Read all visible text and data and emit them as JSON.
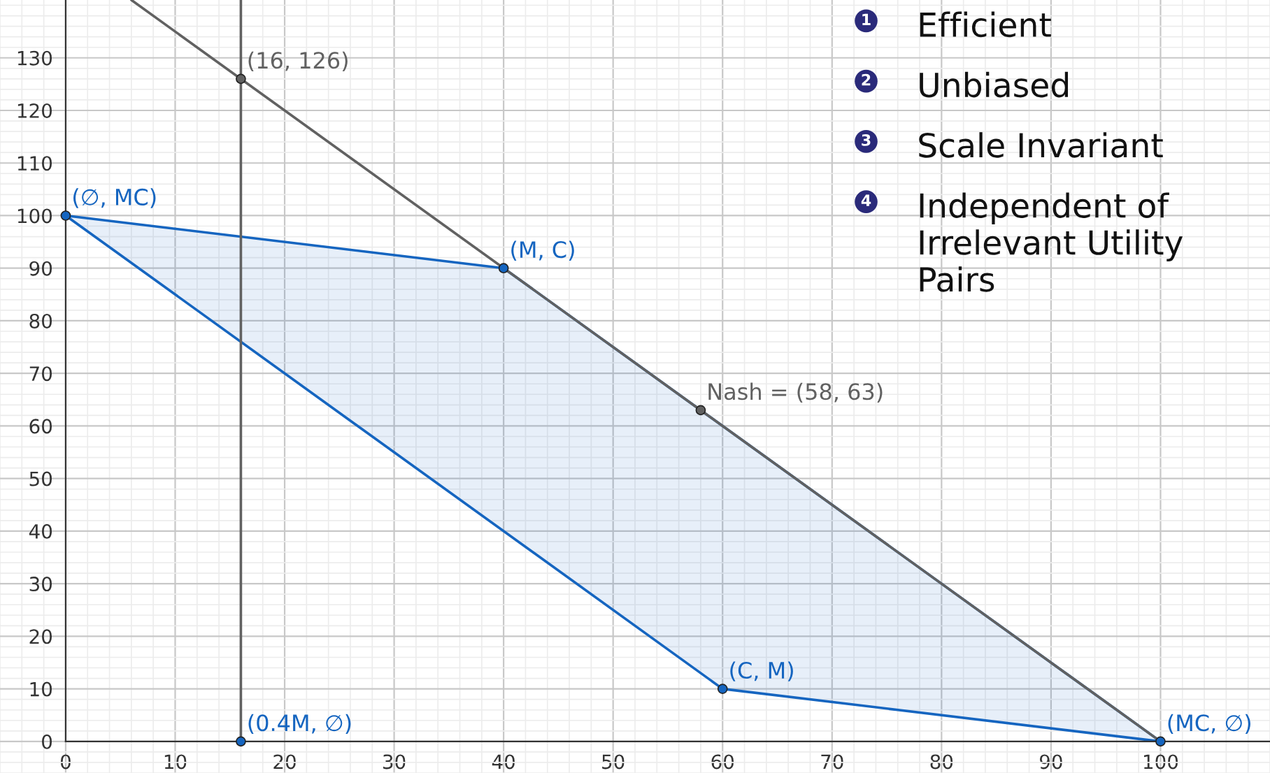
{
  "chart_data": {
    "type": "line",
    "xlim": [
      -6,
      110
    ],
    "ylim": [
      -6,
      141
    ],
    "xticks": [
      0,
      10,
      20,
      30,
      40,
      50,
      60,
      70,
      80,
      90,
      100
    ],
    "yticks": [
      0,
      10,
      20,
      30,
      40,
      50,
      60,
      70,
      80,
      90,
      100,
      110,
      120,
      130
    ],
    "grid": true,
    "series": [
      {
        "type": "area",
        "color": "#1565c0",
        "x": [
          0,
          40,
          100,
          60,
          0
        ],
        "values": [
          100,
          90,
          0,
          10,
          100
        ]
      },
      {
        "color": "#616161",
        "x": [
          6,
          100
        ],
        "values": [
          141,
          0
        ]
      },
      {
        "color": "#616161",
        "x": [
          16,
          16
        ],
        "values": [
          0,
          141
        ]
      },
      {
        "type": "scatter",
        "marker": "circle",
        "color": "#1565c0",
        "x": [
          0,
          40,
          60,
          100,
          16
        ],
        "values": [
          100,
          90,
          10,
          0,
          0
        ]
      },
      {
        "type": "scatter",
        "marker": "circle",
        "color": "#616161",
        "x": [
          16,
          58
        ],
        "values": [
          126,
          63
        ]
      }
    ],
    "annotations": [
      {
        "text": "(∅, MC)",
        "x": 0,
        "y": 100
      },
      {
        "text": "(M, C)",
        "x": 40,
        "y": 90
      },
      {
        "text": "(C, M)",
        "x": 60,
        "y": 10
      },
      {
        "text": "(MC, ∅)",
        "x": 100,
        "y": 0
      },
      {
        "text": "(0.4M, ∅)",
        "x": 16,
        "y": 0
      },
      {
        "text": "(16, 126)",
        "x": 16,
        "y": 126
      },
      {
        "text": "Nash = (58, 63)",
        "x": 58,
        "y": 63
      },
      "1",
      "Efficient",
      "2",
      "Unbiased",
      "3",
      "Scale Invariant",
      "4",
      "Independent of\nIrrelevant Utility\nPairs"
    ]
  }
}
